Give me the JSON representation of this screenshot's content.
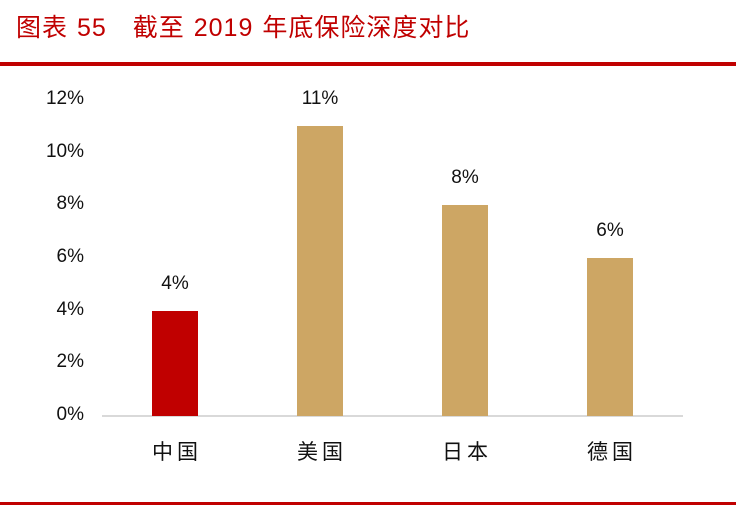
{
  "header": {
    "figure_label": "图表",
    "figure_number": "55",
    "title_prefix": "截至",
    "title_year": "2019",
    "title_suffix": "年底保险深度对比"
  },
  "chart_data": {
    "type": "bar",
    "title": "图表 55 截至 2019 年底保险深度对比",
    "xlabel": "",
    "ylabel": "",
    "categories": [
      "中国",
      "美国",
      "日本",
      "德国"
    ],
    "values": [
      4,
      11,
      8,
      6
    ],
    "value_labels": [
      "4%",
      "11%",
      "8%",
      "6%"
    ],
    "unit": "%",
    "ylim": [
      0,
      12
    ],
    "yticks": [
      "0%",
      "2%",
      "4%",
      "6%",
      "8%",
      "10%",
      "12%"
    ],
    "grid": false,
    "legend": "none",
    "colors": [
      "#c00000",
      "#cda664",
      "#cda664",
      "#cda664"
    ]
  },
  "colors": {
    "accent": "#c00000",
    "bar_highlight": "#c00000",
    "bar_default": "#cda664",
    "axis": "#d9d9d9"
  }
}
